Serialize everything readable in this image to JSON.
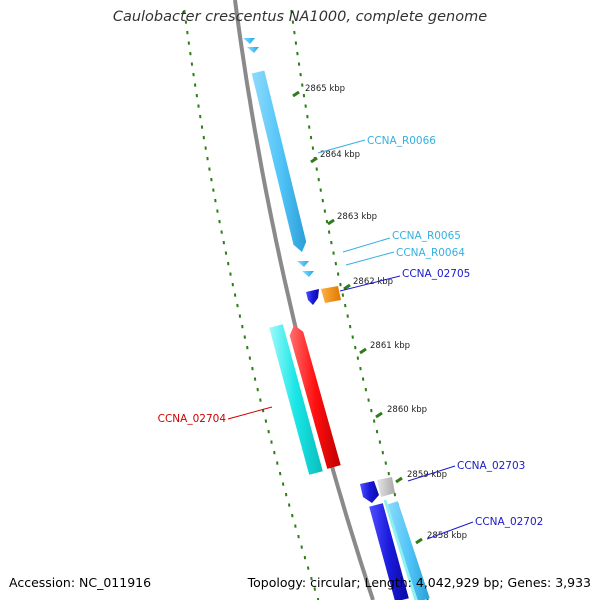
{
  "title": "Caulobacter crescentus NA1000, complete genome",
  "footer": {
    "accession": "Accession: NC_011916",
    "summary": "Topology: circular; Length: 4,042,929 bp; Genes: 3,933"
  },
  "colors": {
    "backbone": "#8a8a8a",
    "tick_track": "#2e7d1a",
    "rna_gene": "#4fc3f7",
    "cds_forward_dark": "#1a1adc",
    "cds_cyan": "#19e6e6",
    "cds_red": "#ff0f0f",
    "cds_orange": "#ff8c00",
    "cds_gray": "#c0c0c0",
    "label_rna": "#34b0e0",
    "label_cds": "#1a1acc",
    "label_red": "#cc0000"
  },
  "scale_labels": [
    "2865 kbp",
    "2864 kbp",
    "2863 kbp",
    "2862 kbp",
    "2861 kbp",
    "2860 kbp",
    "2859 kbp",
    "2858 kbp"
  ],
  "gene_labels": [
    "CCNA_R0066",
    "CCNA_R0065",
    "CCNA_R0064",
    "CCNA_02705",
    "CCNA_02704",
    "CCNA_02703",
    "CCNA_02702"
  ]
}
